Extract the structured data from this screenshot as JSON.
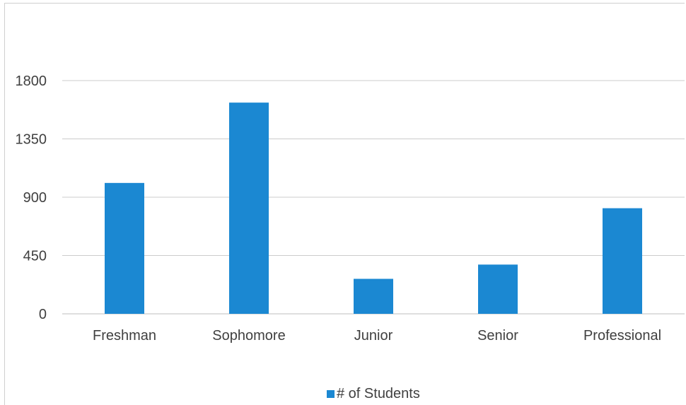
{
  "chart_data": {
    "type": "bar",
    "categories": [
      "Freshman",
      "Sophomore",
      "Junior",
      "Senior",
      "Professional"
    ],
    "series": [
      {
        "name": "# of Students",
        "values": [
          1010,
          1630,
          270,
          380,
          815
        ]
      }
    ],
    "ylim": [
      0,
      1800
    ],
    "yticks": [
      "0",
      "450",
      "900",
      "1350",
      "1800"
    ],
    "grid": true,
    "legend_position": "bottom",
    "colors": {
      "bar": "#1b88d2",
      "grid": "#cccccc",
      "axis": "#bfbfbf"
    }
  }
}
